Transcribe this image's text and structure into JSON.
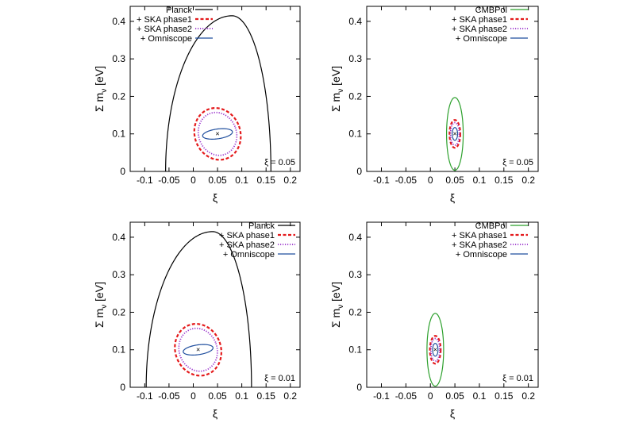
{
  "chart_data": [
    {
      "type": "contour",
      "xlabel": "ξ",
      "ylabel": "Σ m_ν [eV]",
      "ylabel_main": "Σ m",
      "ylabel_sub": "ν",
      "ylabel_unit": " [eV]",
      "xlim": [
        -0.13,
        0.22
      ],
      "ylim": [
        0,
        0.44
      ],
      "xticks": [
        "-0.1",
        "-0.05",
        "0",
        "0.05",
        "0.1",
        "0.15",
        "0.2"
      ],
      "yticks": [
        "0",
        "0.1",
        "0.2",
        "0.3",
        "0.4"
      ],
      "annotation": "ξ = 0.05",
      "fiducial": {
        "x": 0.05,
        "y": 0.1,
        "marker": "×"
      },
      "legend_position": "top-center",
      "series": [
        {
          "name": "Planck",
          "color": "#000000",
          "style": "solid",
          "shape": "dome",
          "x_min": -0.057,
          "x_max": 0.16,
          "y_peak": 0.415,
          "x_peak": 0.08
        },
        {
          "name": "+ SKA phase1",
          "color": "#e41a1c",
          "style": "dashed",
          "shape": "ellipse",
          "center": [
            0.05,
            0.1
          ],
          "semi_axes": [
            0.047,
            0.07
          ],
          "tilt_deg": -20
        },
        {
          "name": "+ SKA phase2",
          "color": "#9932cc",
          "style": "dotted",
          "shape": "ellipse",
          "center": [
            0.05,
            0.1
          ],
          "semi_axes": [
            0.039,
            0.058
          ],
          "tilt_deg": -20
        },
        {
          "name": "+ Omniscope",
          "color": "#1f4e9e",
          "style": "solid",
          "shape": "ellipse",
          "center": [
            0.05,
            0.1
          ],
          "semi_axes": [
            0.031,
            0.013
          ],
          "tilt_deg": -8
        }
      ]
    },
    {
      "type": "contour",
      "xlabel": "ξ",
      "ylabel": "Σ m_ν [eV]",
      "ylabel_main": "Σ m",
      "ylabel_sub": "ν",
      "ylabel_unit": " [eV]",
      "xlim": [
        -0.13,
        0.22
      ],
      "ylim": [
        0,
        0.44
      ],
      "xticks": [
        "-0.1",
        "-0.05",
        "0",
        "0.05",
        "0.1",
        "0.15",
        "0.2"
      ],
      "yticks": [
        "0",
        "0.1",
        "0.2",
        "0.3",
        "0.4"
      ],
      "annotation": "ξ = 0.05",
      "fiducial": {
        "x": 0.05,
        "y": 0.1,
        "marker": "×"
      },
      "legend_position": "top-right",
      "series": [
        {
          "name": "CMBPol",
          "color": "#2ca02c",
          "style": "solid",
          "shape": "ellipse",
          "center": [
            0.05,
            0.1
          ],
          "semi_axes": [
            0.017,
            0.097
          ],
          "tilt_deg": 0
        },
        {
          "name": "+ SKA phase1",
          "color": "#e41a1c",
          "style": "dashed",
          "shape": "ellipse",
          "center": [
            0.05,
            0.1
          ],
          "semi_axes": [
            0.011,
            0.037
          ],
          "tilt_deg": 0
        },
        {
          "name": "+ SKA phase2",
          "color": "#9932cc",
          "style": "dotted",
          "shape": "ellipse",
          "center": [
            0.05,
            0.1
          ],
          "semi_axes": [
            0.009,
            0.03
          ],
          "tilt_deg": 0
        },
        {
          "name": "+ Omniscope",
          "color": "#1f4e9e",
          "style": "solid",
          "shape": "ellipse",
          "center": [
            0.05,
            0.1
          ],
          "semi_axes": [
            0.0055,
            0.017
          ],
          "tilt_deg": 0
        }
      ]
    },
    {
      "type": "contour",
      "xlabel": "ξ",
      "ylabel": "Σ m_ν [eV]",
      "ylabel_main": "Σ m",
      "ylabel_sub": "ν",
      "ylabel_unit": " [eV]",
      "xlim": [
        -0.13,
        0.22
      ],
      "ylim": [
        0,
        0.44
      ],
      "xticks": [
        "-0.1",
        "-0.05",
        "0",
        "0.05",
        "0.1",
        "0.15",
        "0.2"
      ],
      "yticks": [
        "0",
        "0.1",
        "0.2",
        "0.3",
        "0.4"
      ],
      "annotation": "ξ = 0.01",
      "fiducial": {
        "x": 0.01,
        "y": 0.1,
        "marker": "×"
      },
      "legend_position": "top-right",
      "series": [
        {
          "name": "Planck",
          "color": "#000000",
          "style": "solid",
          "shape": "dome",
          "x_min": -0.097,
          "x_max": 0.12,
          "y_peak": 0.415,
          "x_peak": 0.04
        },
        {
          "name": "+ SKA phase1",
          "color": "#e41a1c",
          "style": "dashed",
          "shape": "ellipse",
          "center": [
            0.01,
            0.1
          ],
          "semi_axes": [
            0.047,
            0.07
          ],
          "tilt_deg": -20
        },
        {
          "name": "+ SKA phase2",
          "color": "#9932cc",
          "style": "dotted",
          "shape": "ellipse",
          "center": [
            0.01,
            0.1
          ],
          "semi_axes": [
            0.039,
            0.058
          ],
          "tilt_deg": -20
        },
        {
          "name": "+ Omniscope",
          "color": "#1f4e9e",
          "style": "solid",
          "shape": "ellipse",
          "center": [
            0.01,
            0.1
          ],
          "semi_axes": [
            0.031,
            0.013
          ],
          "tilt_deg": -8
        }
      ]
    },
    {
      "type": "contour",
      "xlabel": "ξ",
      "ylabel": "Σ m_ν [eV]",
      "ylabel_main": "Σ m",
      "ylabel_sub": "ν",
      "ylabel_unit": " [eV]",
      "xlim": [
        -0.13,
        0.22
      ],
      "ylim": [
        0,
        0.44
      ],
      "xticks": [
        "-0.1",
        "-0.05",
        "0",
        "0.05",
        "0.1",
        "0.15",
        "0.2"
      ],
      "yticks": [
        "0",
        "0.1",
        "0.2",
        "0.3",
        "0.4"
      ],
      "annotation": "ξ = 0.01",
      "fiducial": {
        "x": 0.01,
        "y": 0.1,
        "marker": "×"
      },
      "legend_position": "top-right",
      "series": [
        {
          "name": "CMBPol",
          "color": "#2ca02c",
          "style": "solid",
          "shape": "ellipse",
          "center": [
            0.01,
            0.1
          ],
          "semi_axes": [
            0.017,
            0.097
          ],
          "tilt_deg": 0
        },
        {
          "name": "+ SKA phase1",
          "color": "#e41a1c",
          "style": "dashed",
          "shape": "ellipse",
          "center": [
            0.01,
            0.1
          ],
          "semi_axes": [
            0.011,
            0.037
          ],
          "tilt_deg": 0
        },
        {
          "name": "+ SKA phase2",
          "color": "#9932cc",
          "style": "dotted",
          "shape": "ellipse",
          "center": [
            0.01,
            0.1
          ],
          "semi_axes": [
            0.009,
            0.03
          ],
          "tilt_deg": 0
        },
        {
          "name": "+ Omniscope",
          "color": "#1f4e9e",
          "style": "solid",
          "shape": "ellipse",
          "center": [
            0.01,
            0.1
          ],
          "semi_axes": [
            0.0055,
            0.017
          ],
          "tilt_deg": 0
        }
      ]
    }
  ]
}
